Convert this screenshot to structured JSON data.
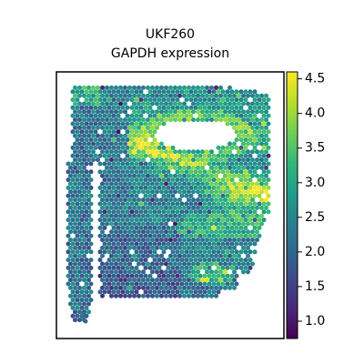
{
  "chart_data": {
    "type": "heatmap",
    "title_line1": "UKF260",
    "title_line2": "GAPDH expression",
    "colormap": "viridis",
    "colorbar": {
      "range": [
        0.75,
        4.6
      ],
      "ticks": [
        "1.0",
        "1.5",
        "2.0",
        "2.5",
        "3.0",
        "3.5",
        "4.0",
        "4.5"
      ],
      "tick_values": [
        1.0,
        1.5,
        2.0,
        2.5,
        3.0,
        3.5,
        4.0,
        4.5
      ]
    },
    "axes": {
      "xticks": false,
      "yticks": false,
      "grid": false
    },
    "spots_region": {
      "description_values": "spatial spots colored by GAPDH expression",
      "high_expression_band": "upper-middle and right side",
      "low_expression_region": "lower-left and narrow left strip",
      "value_range_observed": [
        0.9,
        4.6
      ]
    }
  },
  "palette": {
    "viridis": [
      "#440154",
      "#482878",
      "#3e4989",
      "#31688e",
      "#26828e",
      "#1f9e89",
      "#35b779",
      "#6ece58",
      "#b5de2b",
      "#fde725"
    ]
  }
}
